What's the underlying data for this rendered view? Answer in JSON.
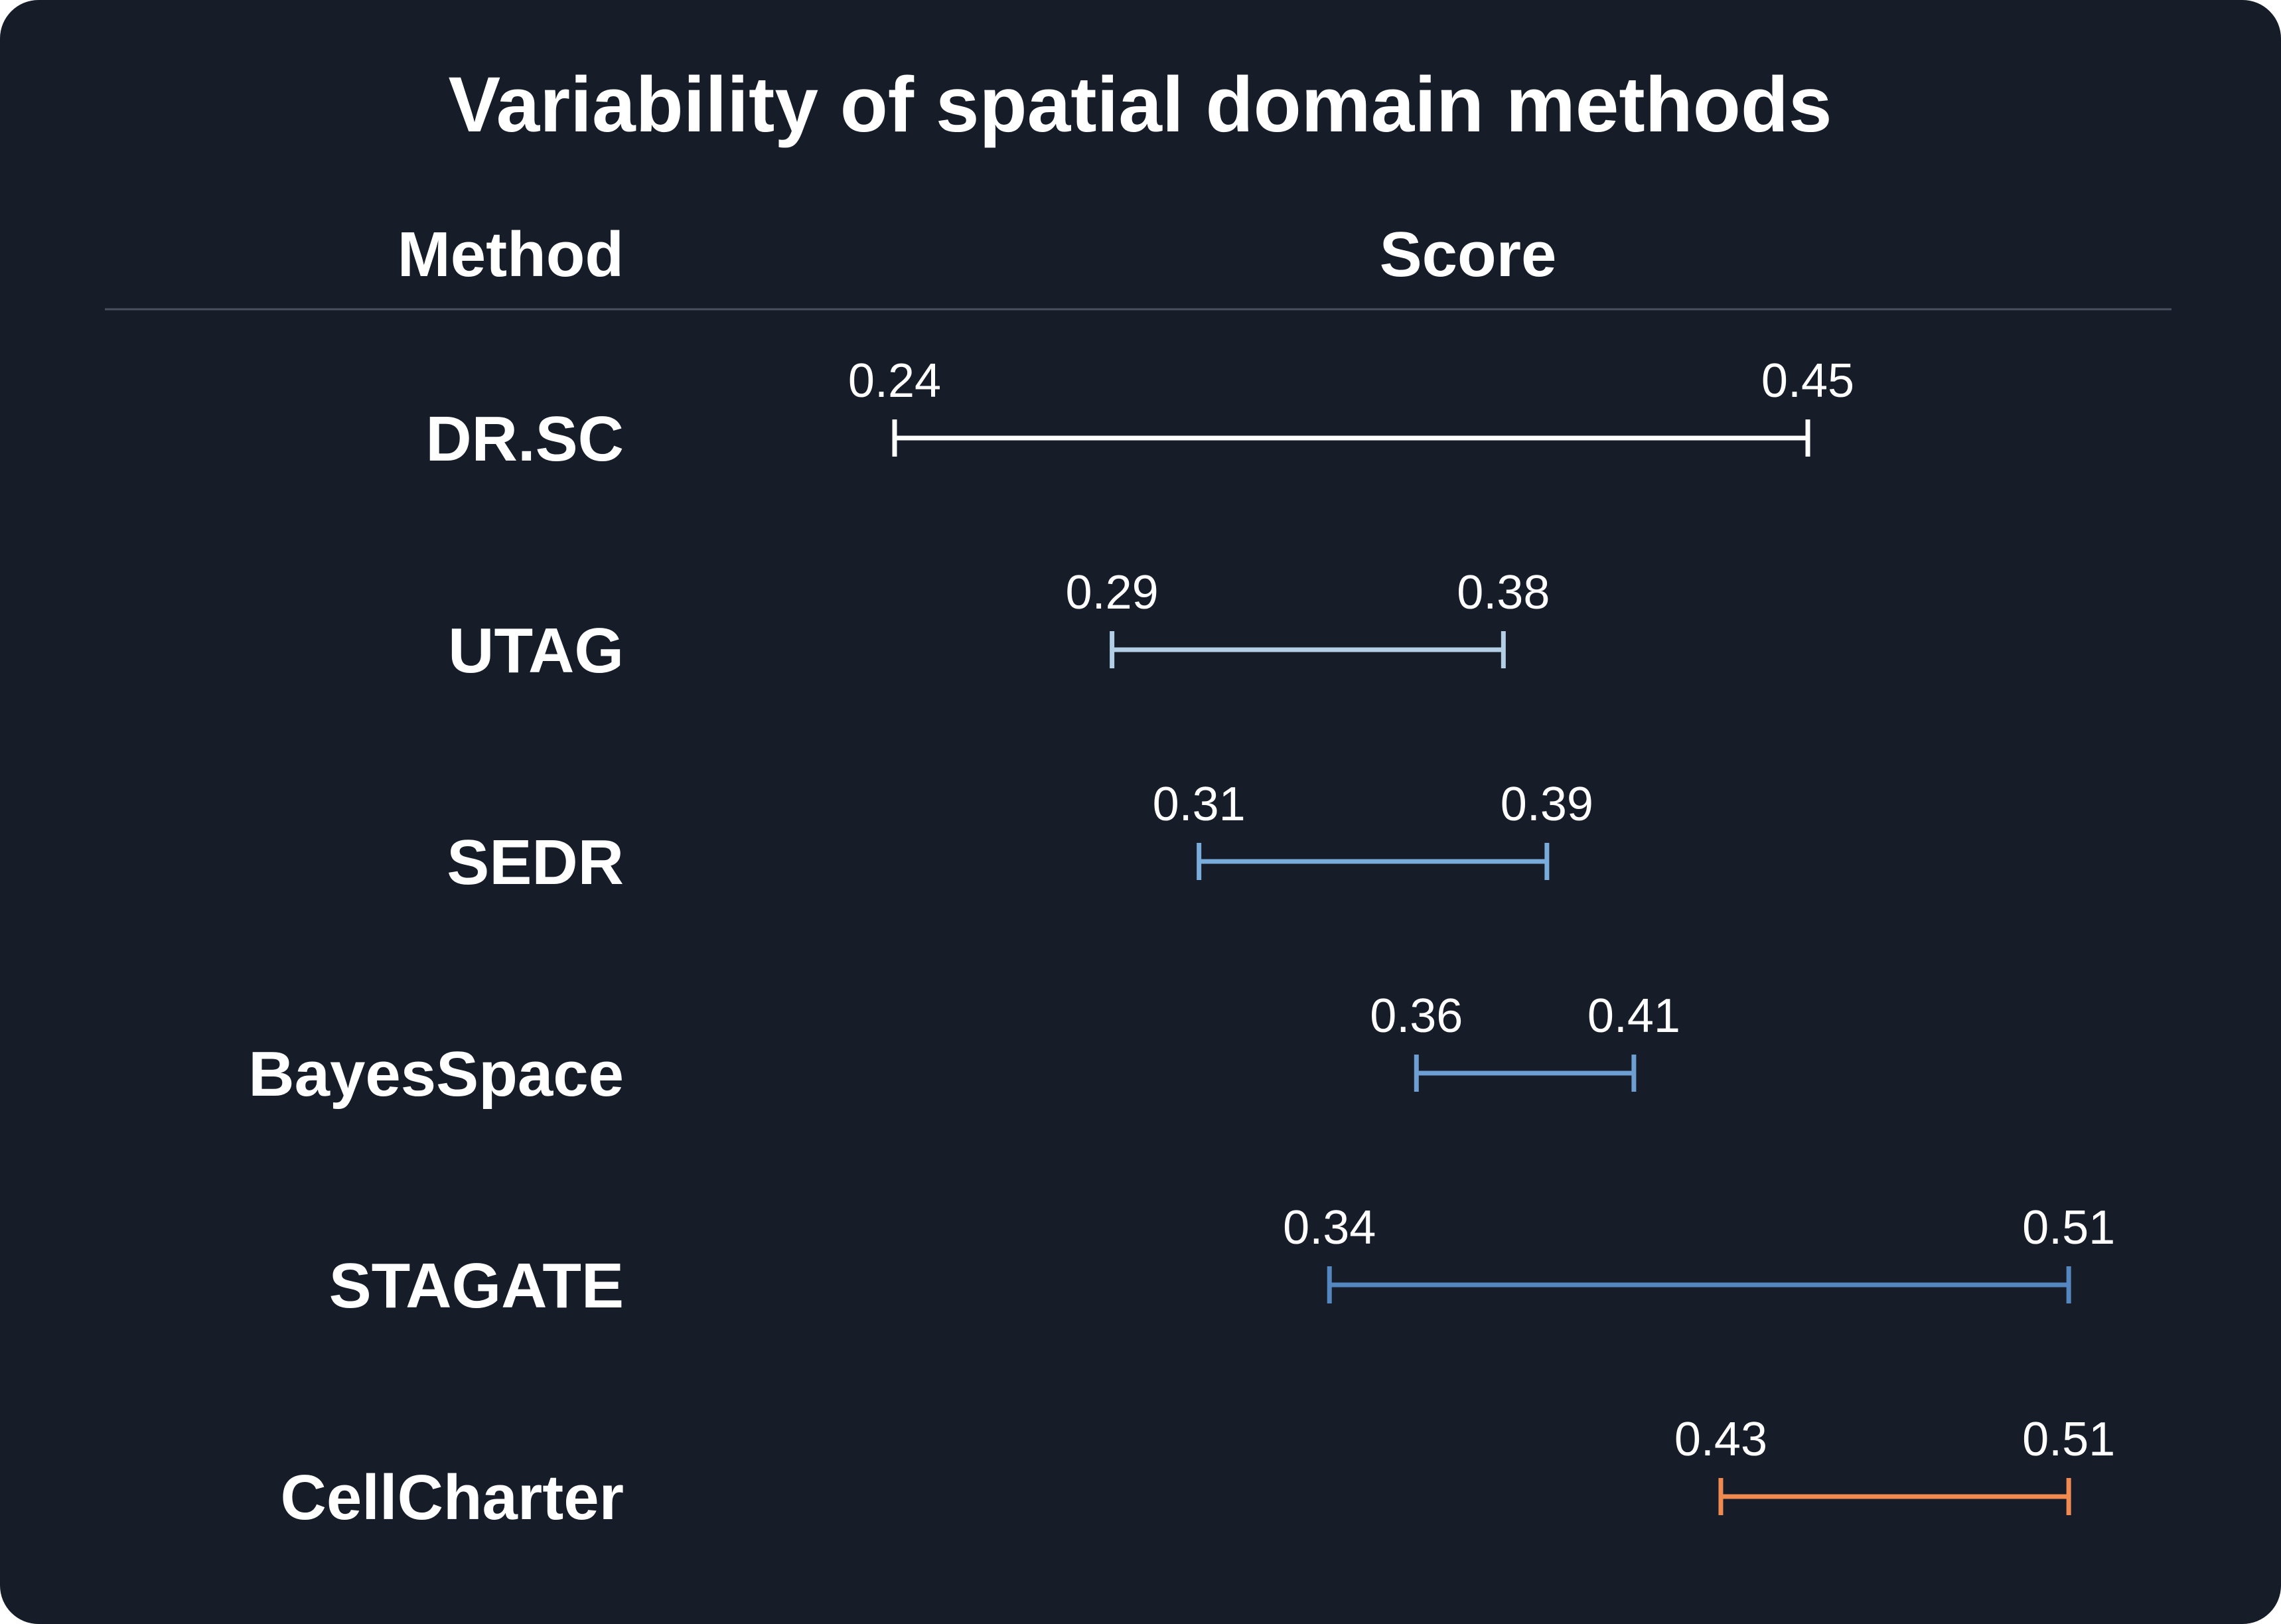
{
  "chart_data": {
    "type": "range",
    "title": "Variability of spatial domain methods",
    "column_headers": {
      "method": "Method",
      "score": "Score"
    },
    "series": [
      {
        "name": "DR.SC",
        "min": 0.24,
        "max": 0.45,
        "min_label": "0.24",
        "max_label": "0.45",
        "color": "#ffffff"
      },
      {
        "name": "UTAG",
        "min": 0.29,
        "max": 0.38,
        "min_label": "0.29",
        "max_label": "0.38",
        "color": "#b3cfe6"
      },
      {
        "name": "SEDR",
        "min": 0.31,
        "max": 0.39,
        "min_label": "0.31",
        "max_label": "0.39",
        "color": "#79acdb"
      },
      {
        "name": "BayesSpace",
        "min": 0.36,
        "max": 0.41,
        "min_label": "0.36",
        "max_label": "0.41",
        "color": "#6d9fd2"
      },
      {
        "name": "STAGATE",
        "min": 0.34,
        "max": 0.51,
        "min_label": "0.34",
        "max_label": "0.51",
        "color": "#5487c0"
      },
      {
        "name": "CellCharter",
        "min": 0.43,
        "max": 0.51,
        "min_label": "0.43",
        "max_label": "0.51",
        "color": "#f08a51"
      }
    ]
  },
  "colors": {
    "background": "#161c28",
    "divider": "#4a5060",
    "text": "#ffffff"
  }
}
